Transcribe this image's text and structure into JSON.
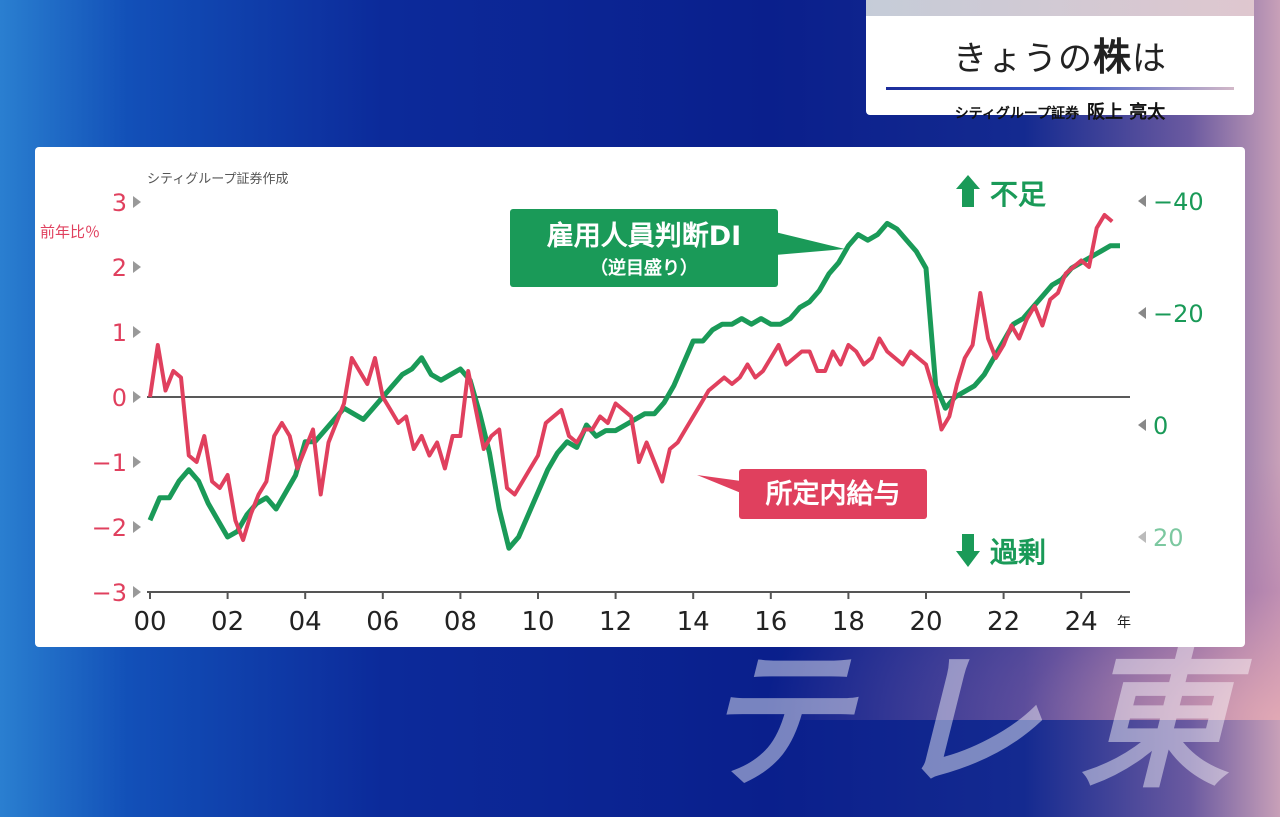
{
  "header": {
    "title_a": "きょうの",
    "title_b": "株",
    "title_c": "は",
    "org": "シティグループ証券",
    "person": "阪上 亮太"
  },
  "watermark": "テレ東",
  "chart_data": {
    "type": "line",
    "source": "シティグループ証券作成",
    "left_unit": "前年比％",
    "x_unit": "年",
    "x_ticks": [
      "00",
      "02",
      "04",
      "06",
      "08",
      "10",
      "12",
      "14",
      "16",
      "18",
      "20",
      "22",
      "24"
    ],
    "left_ticks": [
      "3",
      "2",
      "1",
      "0",
      "−1",
      "−2",
      "−3"
    ],
    "right_ticks": [
      "−40",
      "−20",
      "0",
      "20"
    ],
    "left_ylim": [
      -3,
      3
    ],
    "right_ylim_reversed": [
      20,
      -40
    ],
    "top_note": "不足",
    "bottom_note": "過剰",
    "colors": {
      "wage": "#e0405e",
      "di": "#1a9a58"
    },
    "series": [
      {
        "name": "所定内給与",
        "axis": "left",
        "x": [
          2000.0,
          2000.2,
          2000.4,
          2000.6,
          2000.8,
          2001.0,
          2001.2,
          2001.4,
          2001.6,
          2001.8,
          2002.0,
          2002.2,
          2002.4,
          2002.6,
          2002.8,
          2003.0,
          2003.2,
          2003.4,
          2003.6,
          2003.8,
          2004.0,
          2004.2,
          2004.4,
          2004.6,
          2004.8,
          2005.0,
          2005.2,
          2005.4,
          2005.6,
          2005.8,
          2006.0,
          2006.2,
          2006.4,
          2006.6,
          2006.8,
          2007.0,
          2007.2,
          2007.4,
          2007.6,
          2007.8,
          2008.0,
          2008.2,
          2008.4,
          2008.6,
          2008.8,
          2009.0,
          2009.2,
          2009.4,
          2009.6,
          2009.8,
          2010.0,
          2010.2,
          2010.4,
          2010.6,
          2010.8,
          2011.0,
          2011.2,
          2011.4,
          2011.6,
          2011.8,
          2012.0,
          2012.2,
          2012.4,
          2012.6,
          2012.8,
          2013.0,
          2013.2,
          2013.4,
          2013.6,
          2013.8,
          2014.0,
          2014.2,
          2014.4,
          2014.6,
          2014.8,
          2015.0,
          2015.2,
          2015.4,
          2015.6,
          2015.8,
          2016.0,
          2016.2,
          2016.4,
          2016.6,
          2016.8,
          2017.0,
          2017.2,
          2017.4,
          2017.6,
          2017.8,
          2018.0,
          2018.2,
          2018.4,
          2018.6,
          2018.8,
          2019.0,
          2019.2,
          2019.4,
          2019.6,
          2019.8,
          2020.0,
          2020.2,
          2020.4,
          2020.6,
          2020.8,
          2021.0,
          2021.2,
          2021.4,
          2021.6,
          2021.8,
          2022.0,
          2022.2,
          2022.4,
          2022.6,
          2022.8,
          2023.0,
          2023.2,
          2023.4,
          2023.6,
          2023.8,
          2024.0,
          2024.2,
          2024.4,
          2024.6,
          2024.8
        ],
        "values": [
          0.0,
          0.8,
          0.1,
          0.4,
          0.3,
          -0.9,
          -1.0,
          -0.6,
          -1.3,
          -1.4,
          -1.2,
          -1.9,
          -2.2,
          -1.8,
          -1.5,
          -1.3,
          -0.6,
          -0.4,
          -0.6,
          -1.1,
          -0.8,
          -0.5,
          -1.5,
          -0.7,
          -0.4,
          -0.1,
          0.6,
          0.4,
          0.2,
          0.6,
          0.0,
          -0.2,
          -0.4,
          -0.3,
          -0.8,
          -0.6,
          -0.9,
          -0.7,
          -1.1,
          -0.6,
          -0.6,
          0.4,
          -0.2,
          -0.8,
          -0.6,
          -0.5,
          -1.4,
          -1.5,
          -1.3,
          -1.1,
          -0.9,
          -0.4,
          -0.3,
          -0.2,
          -0.6,
          -0.7,
          -0.5,
          -0.5,
          -0.3,
          -0.4,
          -0.1,
          -0.2,
          -0.3,
          -1.0,
          -0.7,
          -1.0,
          -1.3,
          -0.8,
          -0.7,
          -0.5,
          -0.3,
          -0.1,
          0.1,
          0.2,
          0.3,
          0.2,
          0.3,
          0.5,
          0.3,
          0.4,
          0.6,
          0.8,
          0.5,
          0.6,
          0.7,
          0.7,
          0.4,
          0.4,
          0.7,
          0.5,
          0.8,
          0.7,
          0.5,
          0.6,
          0.9,
          0.7,
          0.6,
          0.5,
          0.7,
          0.6,
          0.5,
          0.1,
          -0.5,
          -0.3,
          0.2,
          0.6,
          0.8,
          1.6,
          0.9,
          0.6,
          0.8,
          1.1,
          0.9,
          1.2,
          1.4,
          1.1,
          1.5,
          1.6,
          1.9,
          2.0,
          2.1,
          2.0,
          2.6,
          2.8,
          2.7
        ]
      },
      {
        "name": "雇用人員判断DI",
        "name_note": "（逆目盛り）",
        "axis": "right",
        "x": [
          2000.0,
          2000.25,
          2000.5,
          2000.75,
          2001.0,
          2001.25,
          2001.5,
          2001.75,
          2002.0,
          2002.25,
          2002.5,
          2002.75,
          2003.0,
          2003.25,
          2003.5,
          2003.75,
          2004.0,
          2004.25,
          2004.5,
          2004.75,
          2005.0,
          2005.25,
          2005.5,
          2005.75,
          2006.0,
          2006.25,
          2006.5,
          2006.75,
          2007.0,
          2007.25,
          2007.5,
          2007.75,
          2008.0,
          2008.25,
          2008.5,
          2008.75,
          2009.0,
          2009.25,
          2009.5,
          2009.75,
          2010.0,
          2010.25,
          2010.5,
          2010.75,
          2011.0,
          2011.25,
          2011.5,
          2011.75,
          2012.0,
          2012.25,
          2012.5,
          2012.75,
          2013.0,
          2013.25,
          2013.5,
          2013.75,
          2014.0,
          2014.25,
          2014.5,
          2014.75,
          2015.0,
          2015.25,
          2015.5,
          2015.75,
          2016.0,
          2016.25,
          2016.5,
          2016.75,
          2017.0,
          2017.25,
          2017.5,
          2017.75,
          2018.0,
          2018.25,
          2018.5,
          2018.75,
          2019.0,
          2019.25,
          2019.5,
          2019.75,
          2020.0,
          2020.25,
          2020.5,
          2020.75,
          2021.0,
          2021.25,
          2021.5,
          2021.75,
          2022.0,
          2022.25,
          2022.5,
          2022.75,
          2023.0,
          2023.25,
          2023.5,
          2023.75,
          2024.0,
          2024.25,
          2024.5,
          2024.75,
          2025.0
        ],
        "values": [
          17,
          13,
          13,
          10,
          8,
          10,
          14,
          17,
          20,
          19,
          16,
          14,
          13,
          15,
          12,
          9,
          3,
          3,
          1,
          -1,
          -3,
          -2,
          -1,
          -3,
          -5,
          -7,
          -9,
          -10,
          -12,
          -9,
          -8,
          -9,
          -10,
          -8,
          -2,
          5,
          15,
          22,
          20,
          16,
          12,
          8,
          5,
          3,
          4,
          0,
          2,
          1,
          1,
          0,
          -1,
          -2,
          -2,
          -4,
          -7,
          -11,
          -15,
          -15,
          -17,
          -18,
          -18,
          -19,
          -18,
          -19,
          -18,
          -18,
          -19,
          -21,
          -22,
          -24,
          -27,
          -29,
          -32,
          -34,
          -33,
          -34,
          -36,
          -35,
          -33,
          -31,
          -28,
          -7,
          -3,
          -5,
          -6,
          -7,
          -9,
          -12,
          -15,
          -18,
          -19,
          -21,
          -23,
          -25,
          -26,
          -28,
          -29,
          -30,
          -31,
          -32,
          -32
        ]
      }
    ]
  }
}
